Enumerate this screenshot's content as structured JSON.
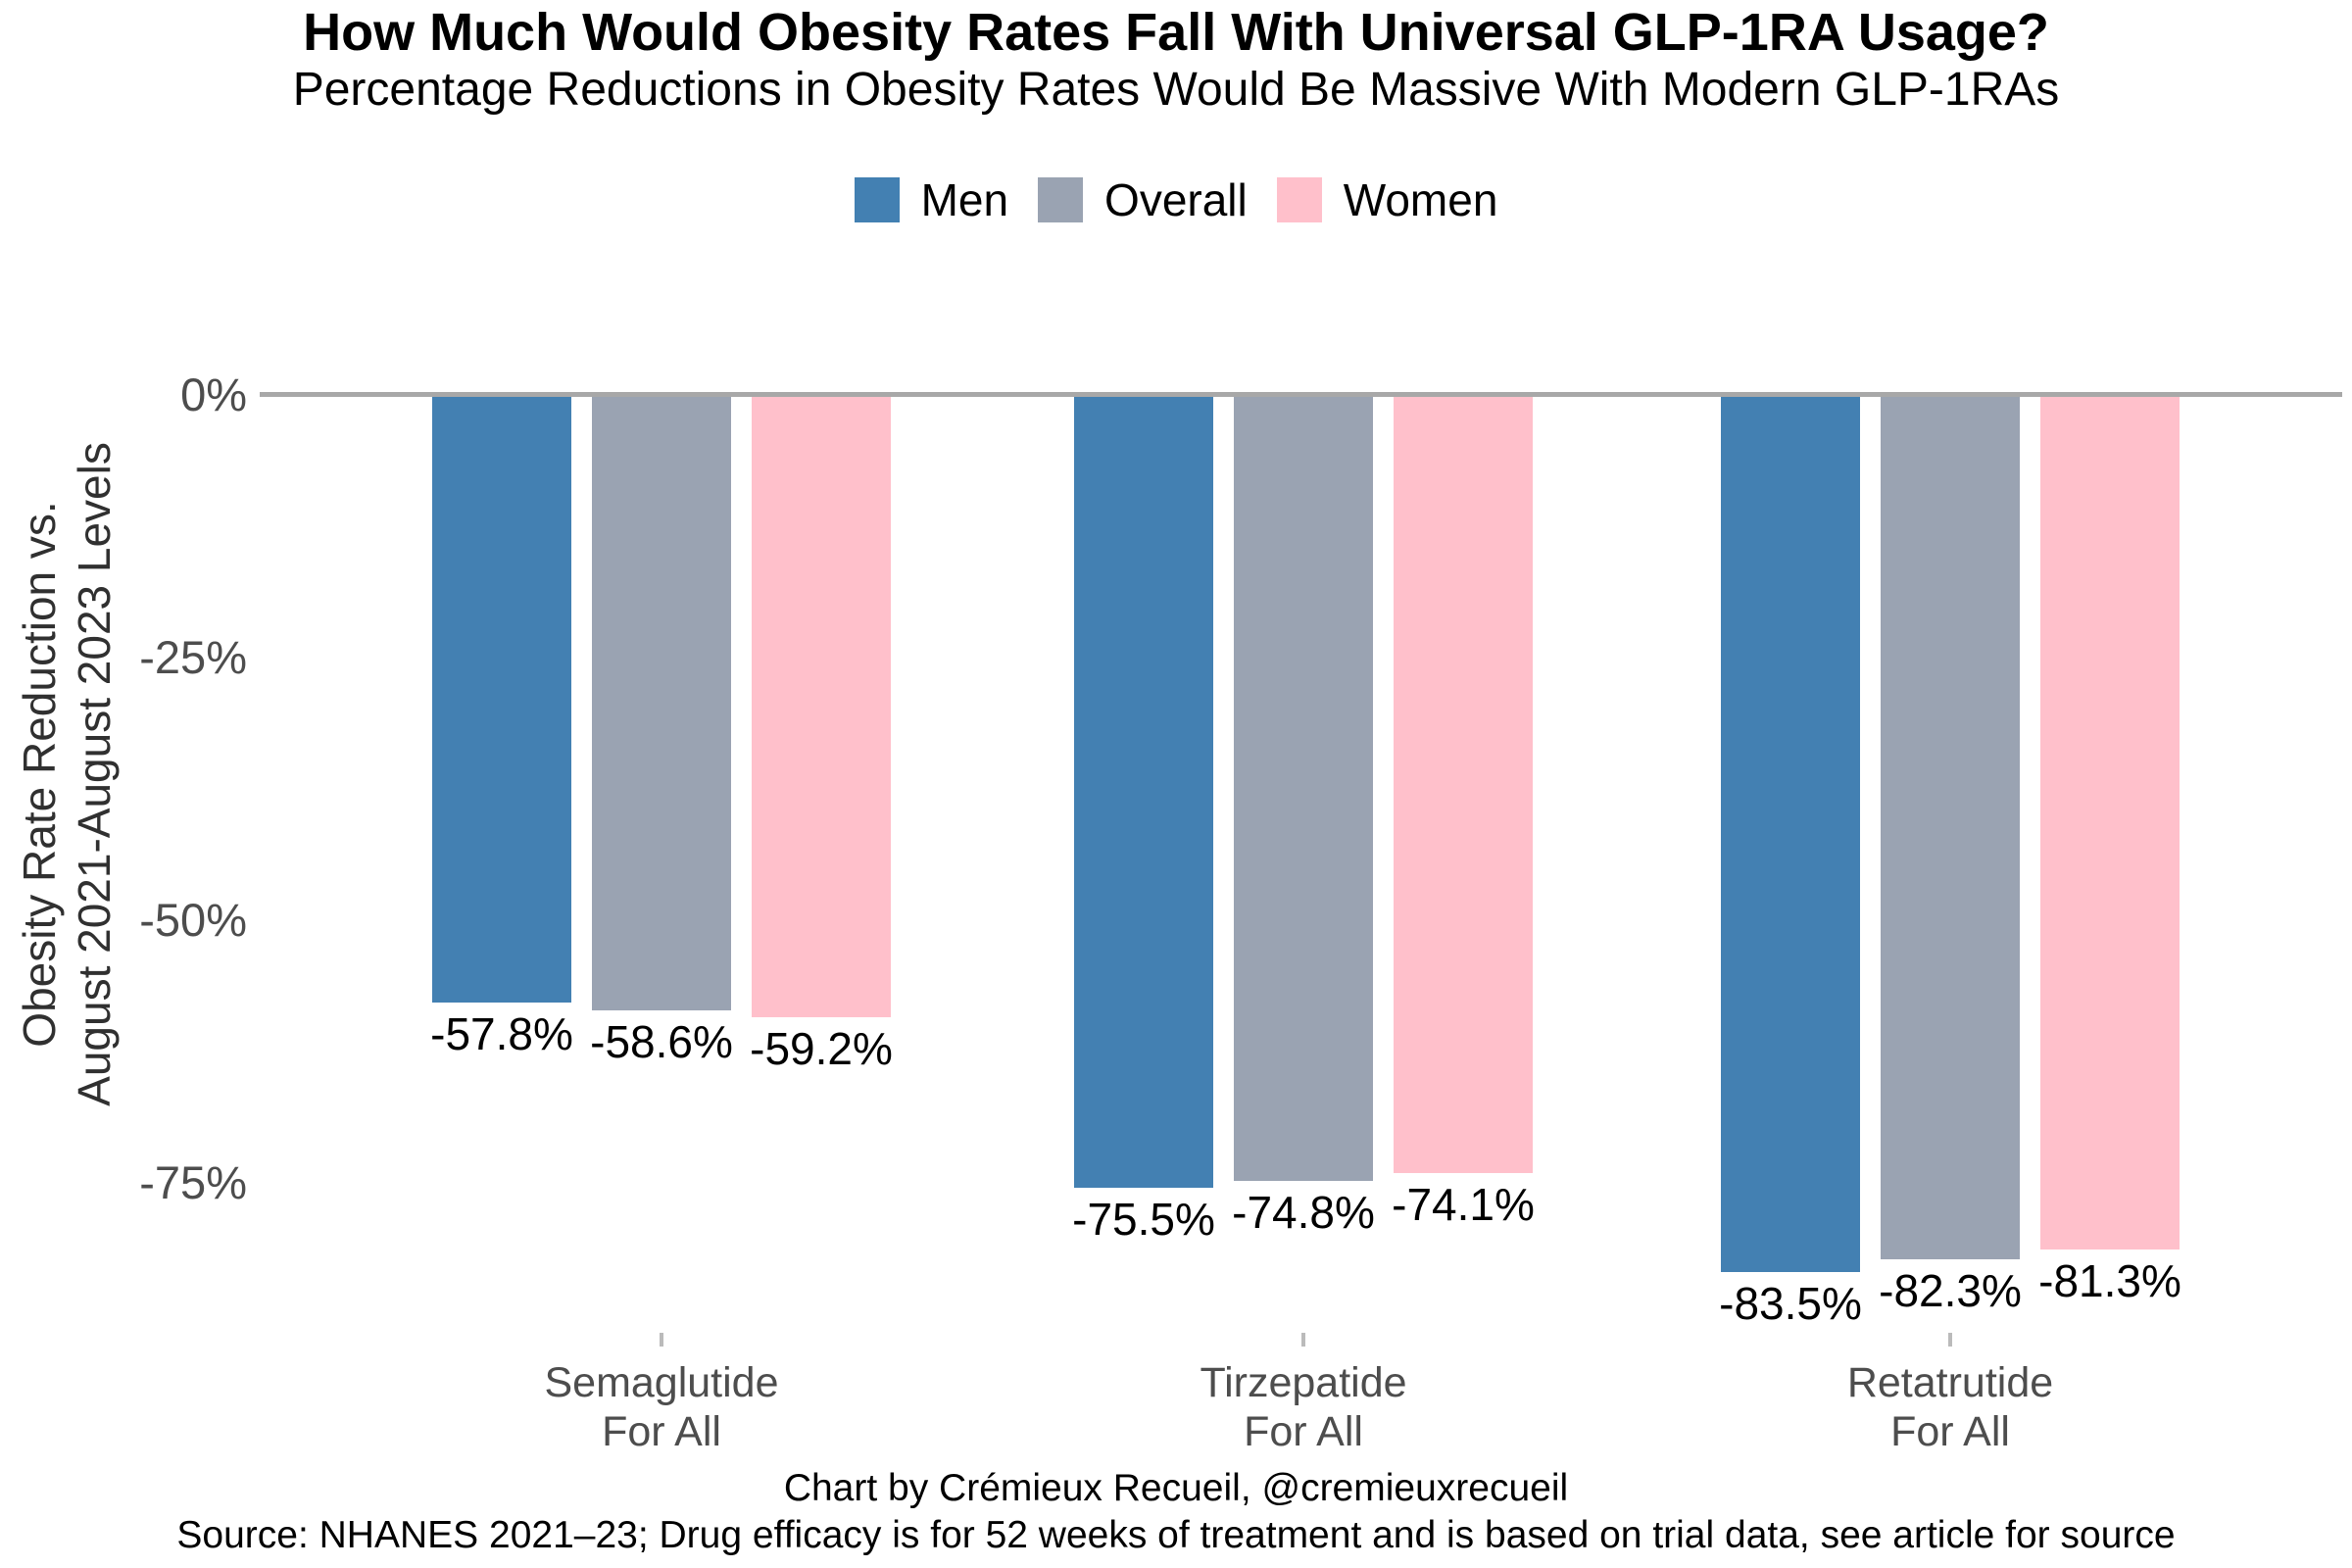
{
  "header": {
    "title": "How Much Would Obesity Rates Fall With Universal GLP-1RA Usage?",
    "subtitle": "Percentage Reductions in Obesity Rates Would Be Massive With Modern GLP-1RAs"
  },
  "chart_data": {
    "type": "bar",
    "orientation": "vertical",
    "categories": [
      {
        "line1": "Semaglutide",
        "line2": "For All"
      },
      {
        "line1": "Tirzepatide",
        "line2": "For All"
      },
      {
        "line1": "Retatrutide",
        "line2": "For All"
      }
    ],
    "series": [
      {
        "name": "Men",
        "color": "#4380B2",
        "values": [
          -57.8,
          -75.5,
          -83.5
        ]
      },
      {
        "name": "Overall",
        "color": "#9AA3B2",
        "values": [
          -58.6,
          -74.8,
          -82.3
        ]
      },
      {
        "name": "Women",
        "color": "#FFC0CB",
        "values": [
          -59.2,
          -74.1,
          -81.3
        ]
      }
    ],
    "value_labels": [
      [
        "-57.8%",
        "-75.5%",
        "-83.5%"
      ],
      [
        "-58.6%",
        "-74.8%",
        "-82.3%"
      ],
      [
        "-59.2%",
        "-74.1%",
        "-81.3%"
      ]
    ],
    "ylabel_line1": "Obesity Rate Reduction vs.",
    "ylabel_line2": "August 2021-August 2023 Levels",
    "yticks": [
      {
        "value": 0,
        "label": "0%"
      },
      {
        "value": -25,
        "label": "-25%"
      },
      {
        "value": -50,
        "label": "-50%"
      },
      {
        "value": -75,
        "label": "-75%"
      }
    ],
    "ylim": [
      -90,
      0
    ],
    "grid": false,
    "legend_position": "top",
    "baseline_color": "#A8A8A8",
    "tick_label_color": "#4D4D4D",
    "value_label_color": "#000000"
  },
  "footer": {
    "credit": "Chart by Crémieux Recueil, @cremieuxrecueil",
    "source": "Source: NHANES 2021–23; Drug efficacy is for 52 weeks of treatment and is based on trial data, see article for source"
  }
}
